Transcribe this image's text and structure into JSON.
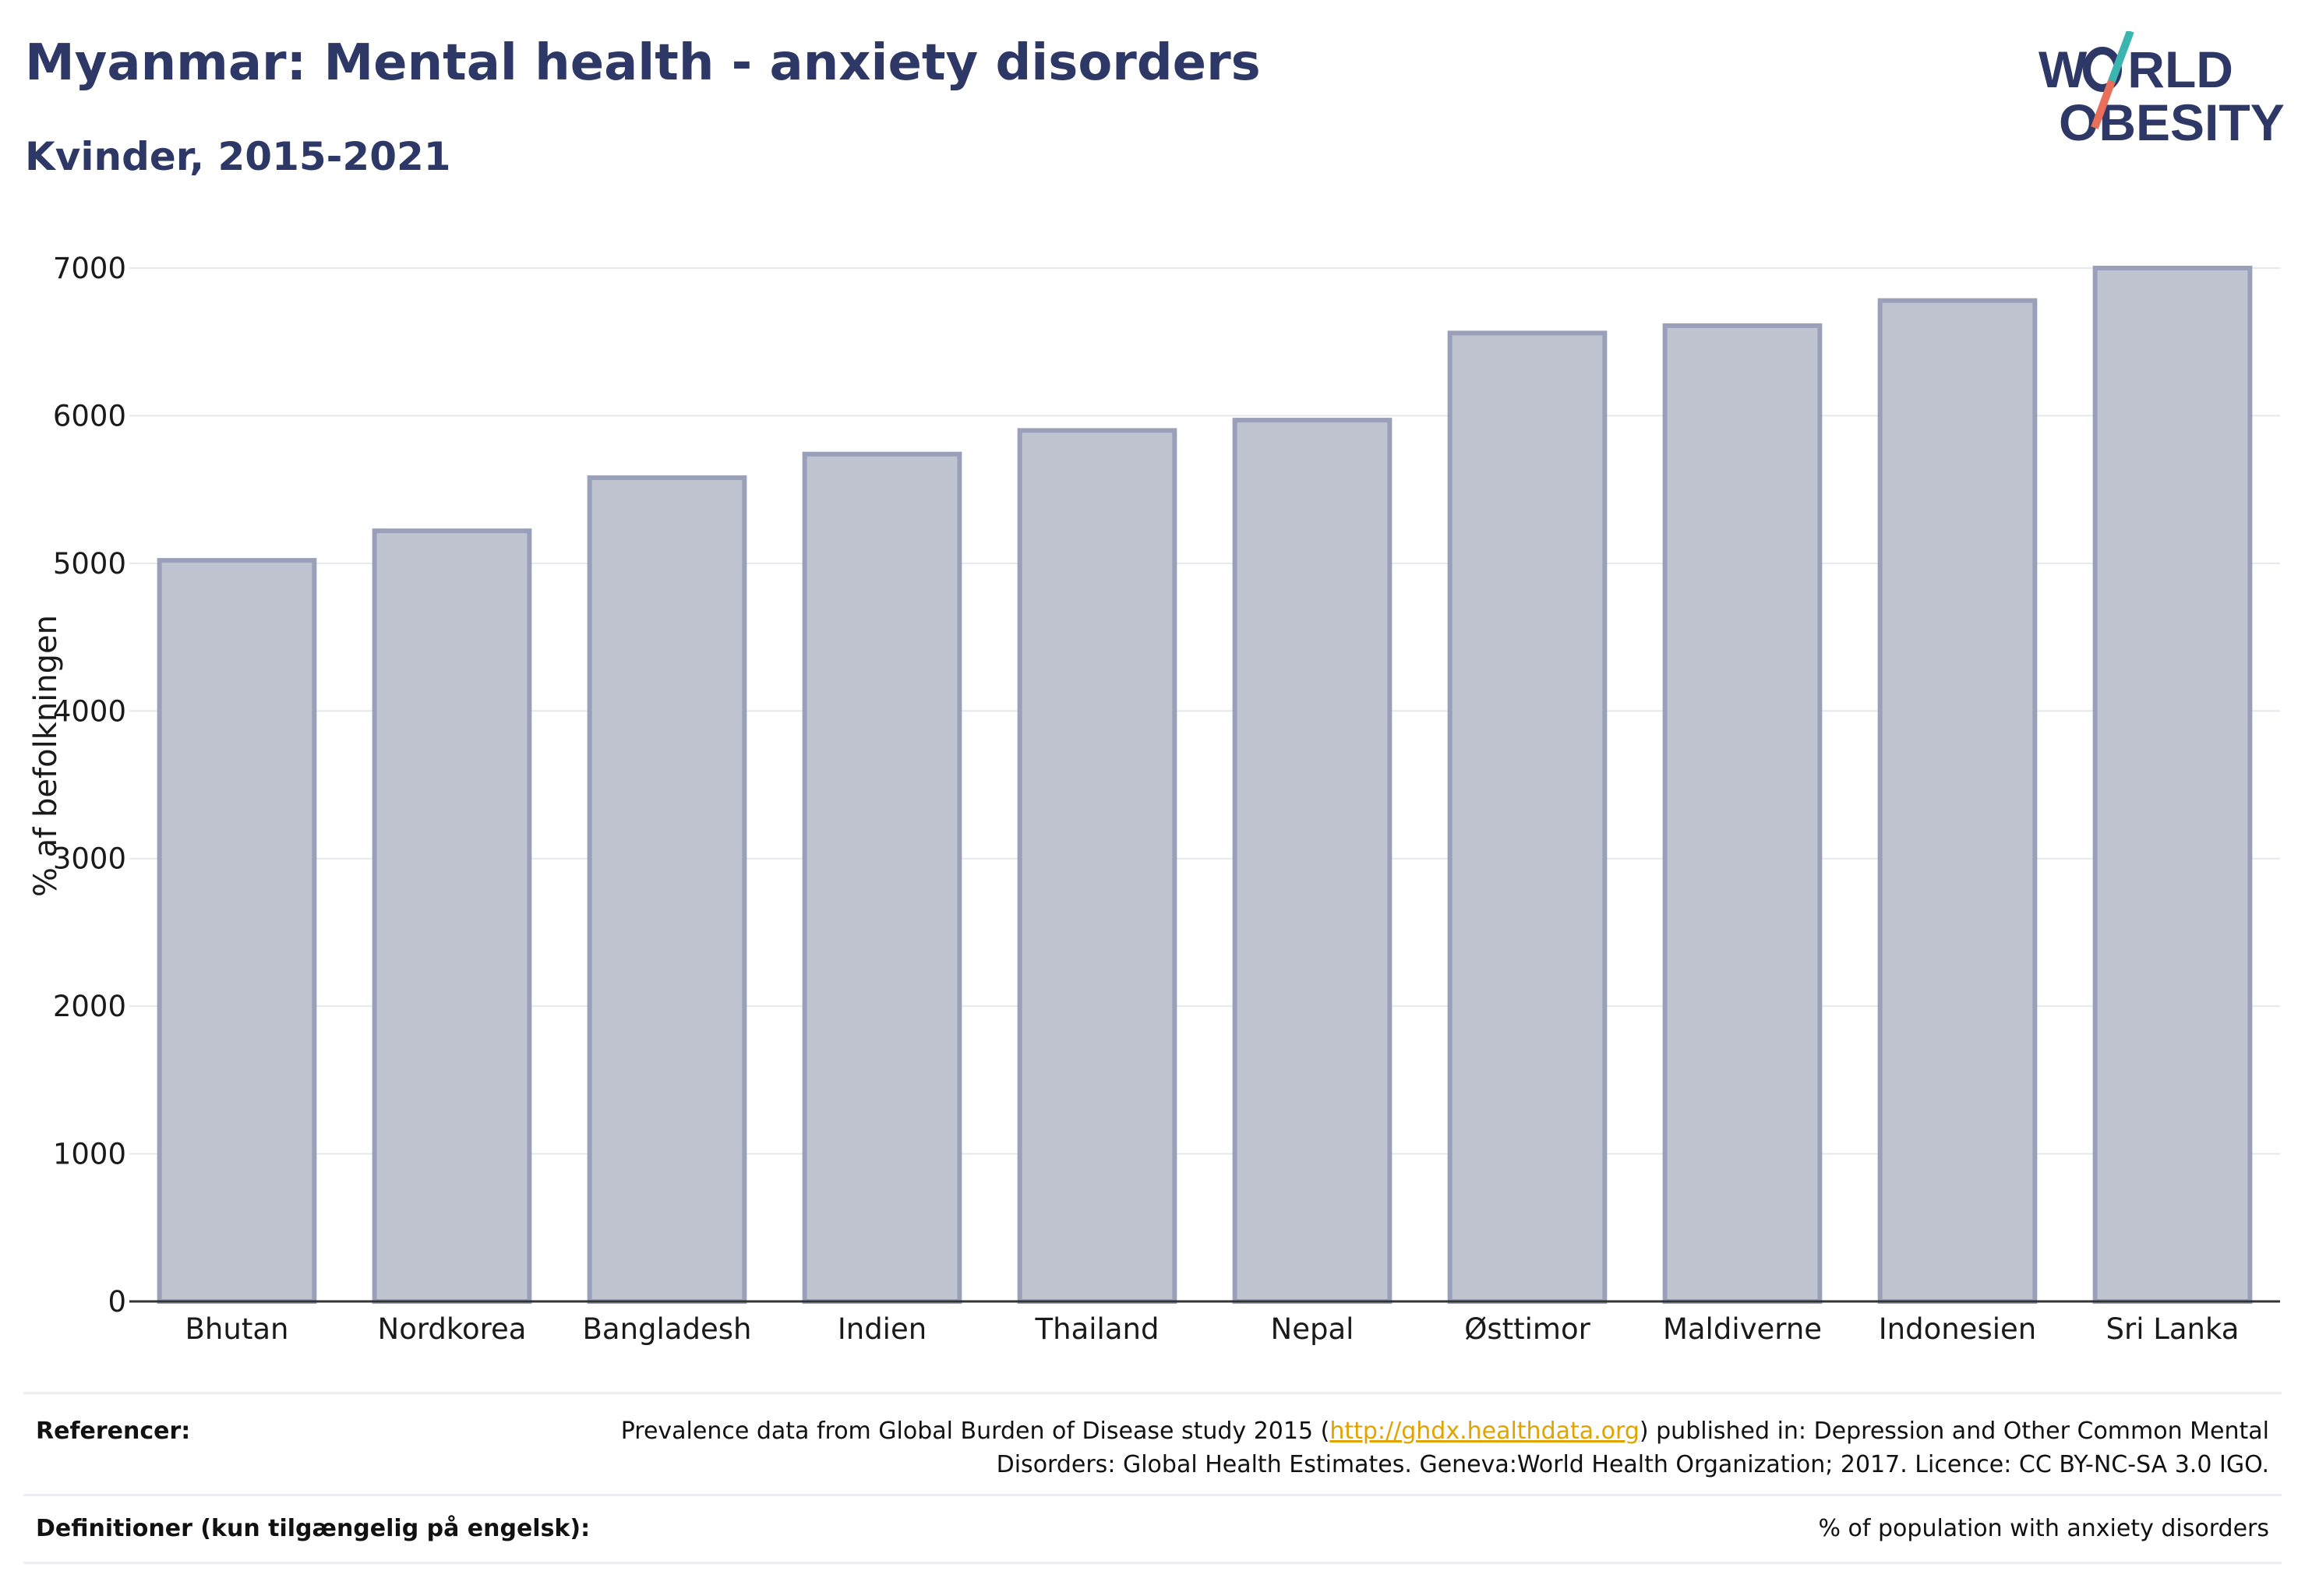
{
  "header": {
    "title": "Myanmar: Mental health - anxiety disorders",
    "subtitle": "Kvinder, 2015-2021"
  },
  "logo": {
    "line1_a": "W",
    "line1_b": "RLD",
    "line2_a": "O",
    "line2_b": "BESITY",
    "accent_teal": "#3ab5b0",
    "accent_coral": "#e8705a"
  },
  "chart_data": {
    "type": "bar",
    "categories": [
      "Bhutan",
      "Nordkorea",
      "Bangladesh",
      "Indien",
      "Thailand",
      "Nepal",
      "Østtimor",
      "Maldiverne",
      "Indonesien",
      "Sri Lanka"
    ],
    "values": [
      5020,
      5220,
      5580,
      5740,
      5900,
      5970,
      6560,
      6610,
      6780,
      7000
    ],
    "ylabel": "% af befolkningen",
    "ylim": [
      0,
      7000
    ],
    "yticks": [
      0,
      1000,
      2000,
      3000,
      4000,
      5000,
      6000,
      7000
    ],
    "grid": true,
    "bar_color": "#c0c4d1",
    "bar_edge_color": "#9aa0b9"
  },
  "footer": {
    "references_label": "Referencer:",
    "references_text_before": "Prevalence data from Global Burden of Disease study 2015 (",
    "references_link": "http://ghdx.healthdata.org",
    "references_text_after": ") published in: Depression and Other Common Mental Disorders: Global Health Estimates. Geneva:World Health Organization; 2017. Licence: CC BY-NC-SA 3.0 IGO.",
    "definitions_label": "Definitioner (kun tilgængelig på engelsk):",
    "definitions_text": "% of population with anxiety disorders"
  }
}
